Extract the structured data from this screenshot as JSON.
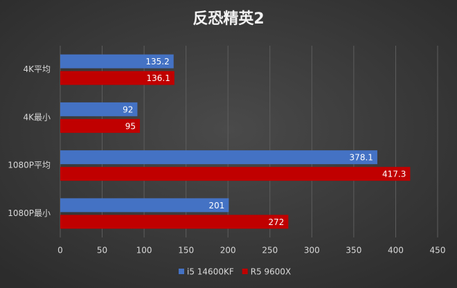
{
  "chart_data": {
    "type": "hbar",
    "title": "反恐精英2",
    "categories": [
      "4K平均",
      "4K最小",
      "1080P平均",
      "1080P最小"
    ],
    "series": [
      {
        "name": "i5 14600KF",
        "color": "#4472c4",
        "values": [
          135.2,
          92,
          378.1,
          201
        ]
      },
      {
        "name": "R5 9600X",
        "color": "#c00000",
        "values": [
          136.1,
          95,
          417.3,
          272
        ]
      }
    ],
    "xlim": [
      0,
      450
    ],
    "xticks": [
      0,
      50,
      100,
      150,
      200,
      250,
      300,
      350,
      400,
      450
    ],
    "grid": true,
    "legend": "bottom"
  }
}
